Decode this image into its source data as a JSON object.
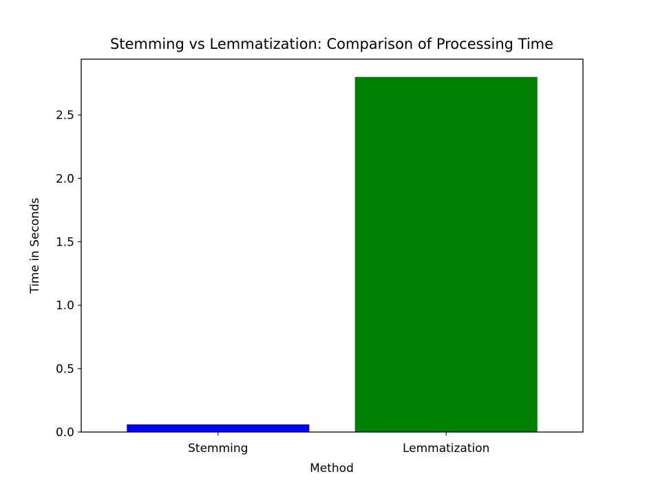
{
  "chart_data": {
    "type": "bar",
    "title": "Stemming vs Lemmatization: Comparison of Processing Time",
    "xlabel": "Method",
    "ylabel": "Time in Seconds",
    "categories": [
      "Stemming",
      "Lemmatization"
    ],
    "values": [
      0.06,
      2.8
    ],
    "colors": [
      "#0000ff",
      "#008000"
    ],
    "ylim": [
      0,
      2.94
    ],
    "yticks": [
      0.0,
      0.5,
      1.0,
      1.5,
      2.0,
      2.5
    ],
    "ytick_labels": [
      "0.0",
      "0.5",
      "1.0",
      "1.5",
      "2.0",
      "2.5"
    ],
    "grid": false,
    "legend": "none"
  }
}
